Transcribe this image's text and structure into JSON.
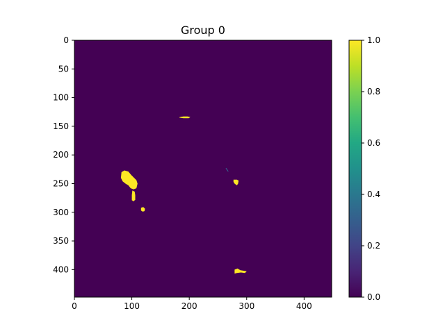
{
  "chart_data": {
    "type": "heatmap",
    "title": "Group 0",
    "xlabel": "",
    "ylabel": "",
    "xlim": [
      0,
      448
    ],
    "ylim": [
      448,
      0
    ],
    "x_ticks": [
      0,
      100,
      200,
      300,
      400
    ],
    "y_ticks": [
      0,
      50,
      100,
      150,
      200,
      250,
      300,
      350,
      400
    ],
    "colorbar": {
      "min": 0.0,
      "max": 1.0,
      "ticks": [
        "0.0",
        "0.2",
        "0.4",
        "0.6",
        "0.8",
        "1.0"
      ],
      "colormap": "viridis"
    },
    "background_value": 0.0,
    "blobs": [
      {
        "name": "blob-a-main",
        "value": 1.0,
        "polygon": [
          [
            82,
            230
          ],
          [
            87,
            227
          ],
          [
            94,
            229
          ],
          [
            99,
            235
          ],
          [
            104,
            240
          ],
          [
            108,
            244
          ],
          [
            110,
            250
          ],
          [
            108,
            258
          ],
          [
            103,
            260
          ],
          [
            98,
            258
          ],
          [
            94,
            253
          ],
          [
            89,
            250
          ],
          [
            84,
            246
          ],
          [
            81,
            240
          ]
        ]
      },
      {
        "name": "blob-a-tail",
        "value": 1.0,
        "polygon": [
          [
            101,
            262
          ],
          [
            105,
            264
          ],
          [
            106,
            270
          ],
          [
            106,
            278
          ],
          [
            103,
            281
          ],
          [
            100,
            279
          ],
          [
            100,
            270
          ]
        ]
      },
      {
        "name": "blob-b",
        "value": 1.0,
        "polygon": [
          [
            116,
            292
          ],
          [
            120,
            291
          ],
          [
            123,
            294
          ],
          [
            122,
            298
          ],
          [
            119,
            299
          ],
          [
            116,
            297
          ]
        ]
      },
      {
        "name": "blob-c",
        "value": 1.0,
        "polygon": [
          [
            183,
            134
          ],
          [
            190,
            133
          ],
          [
            197,
            133
          ],
          [
            202,
            134
          ],
          [
            199,
            136
          ],
          [
            190,
            136
          ],
          [
            183,
            135
          ]
        ]
      },
      {
        "name": "blob-d",
        "value": 1.0,
        "polygon": [
          [
            277,
            243
          ],
          [
            283,
            243
          ],
          [
            286,
            245
          ],
          [
            285,
            250
          ],
          [
            283,
            253
          ],
          [
            279,
            250
          ],
          [
            277,
            247
          ]
        ]
      },
      {
        "name": "blob-e",
        "value": 1.0,
        "polygon": [
          [
            279,
            400
          ],
          [
            284,
            398
          ],
          [
            289,
            401
          ],
          [
            295,
            402
          ],
          [
            300,
            403
          ],
          [
            297,
            406
          ],
          [
            290,
            405
          ],
          [
            283,
            406
          ],
          [
            279,
            407
          ]
        ]
      }
    ],
    "thin_marks": [
      {
        "name": "thin-mark",
        "value": 0.25,
        "points": [
          [
            264,
            223
          ],
          [
            266,
            226
          ],
          [
            268,
            229
          ]
        ]
      }
    ]
  }
}
